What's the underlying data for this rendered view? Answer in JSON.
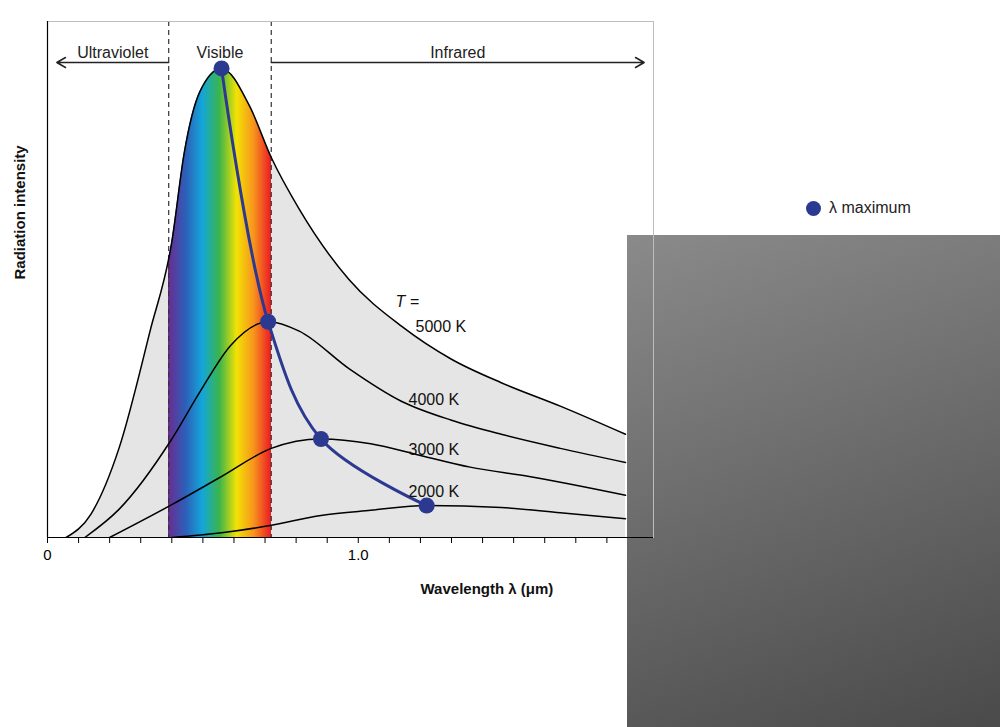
{
  "chart_data": {
    "type": "line",
    "x_label": "Wavelength λ (μm)",
    "y_label": "Radiation intensity",
    "xlim": [
      0,
      1.95
    ],
    "xticks": [
      0,
      {
        "value": 1,
        "label": "1.0"
      }
    ],
    "xminorticks": [
      0.1,
      0.2,
      0.3,
      0.4,
      0.5,
      0.6,
      0.7,
      0.8,
      0.9,
      1.1,
      1.2,
      1.3,
      1.4,
      1.5,
      1.6,
      1.7,
      1.8
    ],
    "ylim": [
      0,
      110
    ],
    "yticks": [],
    "tick_labels": "x",
    "legend": "top-right",
    "annotations": [
      "T ="
    ],
    "spectrum": {
      "label": "Visible",
      "from": 0.39,
      "to": 0.72,
      "colors": [
        "#6a2c91",
        "#2e5eb8",
        "#13a6d9",
        "#3bb54a",
        "#f2e205",
        "#f7941d",
        "#ec1c24"
      ]
    },
    "arrows": [
      {
        "label": "Ultraviolet",
        "from": 0.39,
        "to": 0.03
      },
      {
        "label": "Infrared",
        "from": 0.72,
        "to": 1.92
      }
    ],
    "series": [
      {
        "name": "5000 K",
        "type": "area",
        "color": "#000000",
        "x": [
          0.06,
          0.14,
          0.23,
          0.33,
          0.4,
          0.44,
          0.49,
          0.56,
          0.65,
          0.72,
          0.81,
          0.97,
          1.14,
          1.3,
          1.46,
          1.65,
          1.86
        ],
        "values": [
          0,
          5,
          19,
          44,
          63,
          82,
          95,
          100,
          92,
          81,
          70,
          55,
          45,
          38,
          33,
          28,
          22
        ]
      },
      {
        "name": "4000 K",
        "color": "#000000",
        "x": [
          0.12,
          0.23,
          0.4,
          0.49,
          0.59,
          0.71,
          0.81,
          0.97,
          1.14,
          1.3,
          1.46,
          1.65,
          1.86
        ],
        "values": [
          0,
          6,
          21,
          31,
          41,
          46,
          44,
          36,
          29,
          25,
          22,
          19,
          16
        ]
      },
      {
        "name": "3000 K",
        "color": "#000000",
        "x": [
          0.2,
          0.4,
          0.56,
          0.72,
          0.88,
          1.04,
          1.2,
          1.36,
          1.55,
          1.86
        ],
        "values": [
          0,
          7,
          13,
          19,
          21,
          20,
          17.5,
          15,
          13,
          9
        ]
      },
      {
        "name": "2000 K",
        "color": "#000000",
        "x": [
          0.4,
          0.56,
          0.72,
          0.88,
          1.04,
          1.22,
          1.46,
          1.65,
          1.86
        ],
        "values": [
          0,
          1,
          2.6,
          4.7,
          5.8,
          6.8,
          6.4,
          5.3,
          4
        ]
      },
      {
        "name": "λ maximum",
        "color": "#2b3990",
        "marker": "circle",
        "x": [
          0.56,
          0.71,
          0.88,
          1.22
        ],
        "values": [
          100,
          46,
          21,
          6.8
        ]
      }
    ]
  }
}
